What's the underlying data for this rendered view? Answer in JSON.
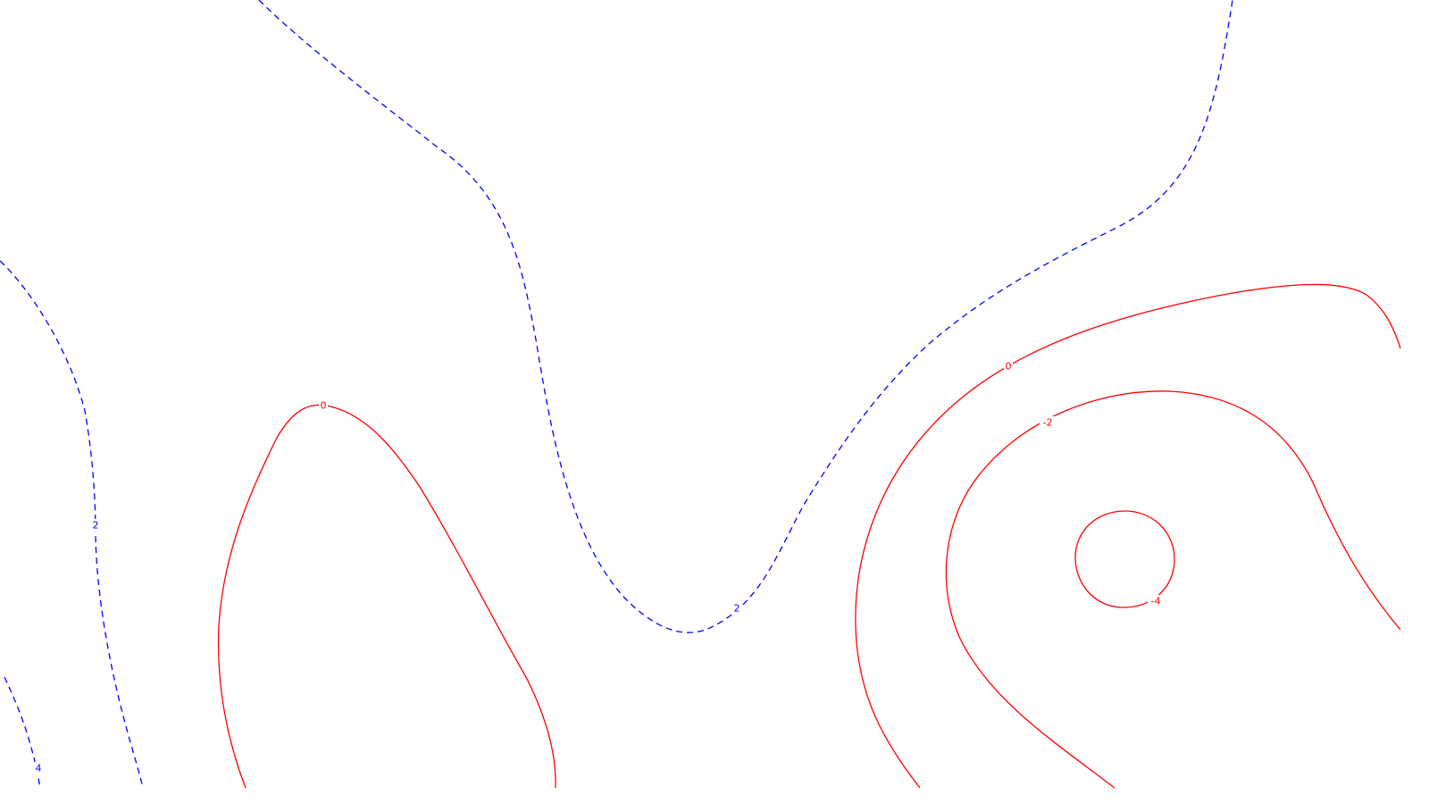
{
  "chart_data": {
    "type": "contour",
    "title": "",
    "xlabel": "",
    "ylabel": "",
    "grid": false,
    "legend": "none",
    "colors": {
      "zero_and_negative": "#ff0000",
      "positive": "#0000ff"
    },
    "line_styles": {
      "zero_and_negative": "solid",
      "positive": "dashed"
    },
    "levels": [
      {
        "value": 4,
        "label": "4",
        "color": "#0000ff",
        "style": "dashed"
      },
      {
        "value": 2,
        "label": "2",
        "color": "#0000ff",
        "style": "dashed"
      },
      {
        "value": 0,
        "label": "0",
        "color": "#ff0000",
        "style": "solid"
      },
      {
        "value": -2,
        "label": "-2",
        "color": "#ff0000",
        "style": "solid"
      },
      {
        "value": -4,
        "label": "-4",
        "color": "#ff0000",
        "style": "solid"
      }
    ]
  }
}
